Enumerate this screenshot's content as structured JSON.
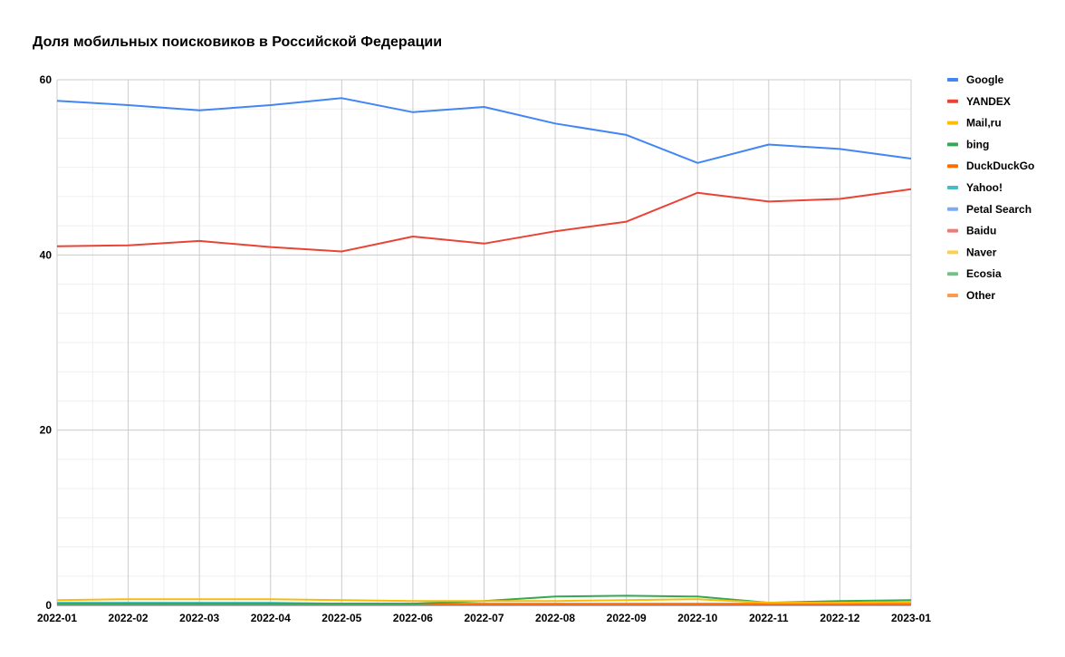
{
  "chart_data": {
    "type": "line",
    "title": "Доля мобильных поисковиков в Российской Федерации",
    "xlabel": "",
    "ylabel": "",
    "x": [
      "2022-01",
      "2022-02",
      "2022-03",
      "2022-04",
      "2022-05",
      "2022-06",
      "2022-07",
      "2022-08",
      "2022-09",
      "2022-10",
      "2022-11",
      "2022-12",
      "2023-01"
    ],
    "yticks": [
      "0",
      "20",
      "40",
      "60"
    ],
    "ylim": [
      0,
      60
    ],
    "grid": true,
    "legend_position": "right",
    "series": [
      {
        "name": "Google",
        "color": "#4285F4",
        "values": [
          57.6,
          57.1,
          56.5,
          57.1,
          57.9,
          56.3,
          56.9,
          55.0,
          53.7,
          50.5,
          52.6,
          52.1,
          51.0
        ]
      },
      {
        "name": "YANDEX",
        "color": "#EA4335",
        "values": [
          41.0,
          41.1,
          41.6,
          40.9,
          40.4,
          42.1,
          41.3,
          42.7,
          43.8,
          47.1,
          46.1,
          46.4,
          47.5
        ]
      },
      {
        "name": "Mail,ru",
        "color": "#FBBC04",
        "values": [
          0.6,
          0.7,
          0.7,
          0.7,
          0.6,
          0.5,
          0.5,
          0.5,
          0.6,
          0.7,
          0.3,
          0.3,
          0.4
        ]
      },
      {
        "name": "bing",
        "color": "#34A853",
        "values": [
          0.2,
          0.2,
          0.2,
          0.2,
          0.2,
          0.2,
          0.5,
          1.0,
          1.1,
          1.0,
          0.3,
          0.5,
          0.6
        ]
      },
      {
        "name": "DuckDuckGo",
        "color": "#FF6D01",
        "values": [
          0.1,
          0.1,
          0.1,
          0.1,
          0.1,
          0.1,
          0.1,
          0.1,
          0.1,
          0.1,
          0.1,
          0.1,
          0.1
        ]
      },
      {
        "name": "Yahoo!",
        "color": "#46BDC6",
        "values": [
          0.3,
          0.3,
          0.3,
          0.3,
          0.2,
          0.2,
          0.2,
          0.2,
          0.2,
          0.2,
          0.2,
          0.2,
          0.2
        ]
      },
      {
        "name": "Petal Search",
        "color": "#7BAAF7",
        "values": [
          0.05,
          0.05,
          0.05,
          0.05,
          0.05,
          0.05,
          0.05,
          0.05,
          0.05,
          0.05,
          0.05,
          0.05,
          0.05
        ]
      },
      {
        "name": "Baidu",
        "color": "#F07B72",
        "values": [
          0.02,
          0.02,
          0.02,
          0.02,
          0.02,
          0.02,
          0.02,
          0.02,
          0.02,
          0.02,
          0.02,
          0.02,
          0.02
        ]
      },
      {
        "name": "Naver",
        "color": "#FCD04F",
        "values": [
          0.02,
          0.02,
          0.02,
          0.02,
          0.02,
          0.02,
          0.02,
          0.02,
          0.02,
          0.02,
          0.02,
          0.02,
          0.02
        ]
      },
      {
        "name": "Ecosia",
        "color": "#71C287",
        "values": [
          0.02,
          0.02,
          0.02,
          0.02,
          0.02,
          0.02,
          0.02,
          0.02,
          0.02,
          0.02,
          0.02,
          0.02,
          0.02
        ]
      },
      {
        "name": "Other",
        "color": "#FF994D",
        "values": [
          0.1,
          0.1,
          0.1,
          0.1,
          0.1,
          0.1,
          0.1,
          0.1,
          0.1,
          0.1,
          0.1,
          0.1,
          0.1
        ]
      }
    ]
  }
}
